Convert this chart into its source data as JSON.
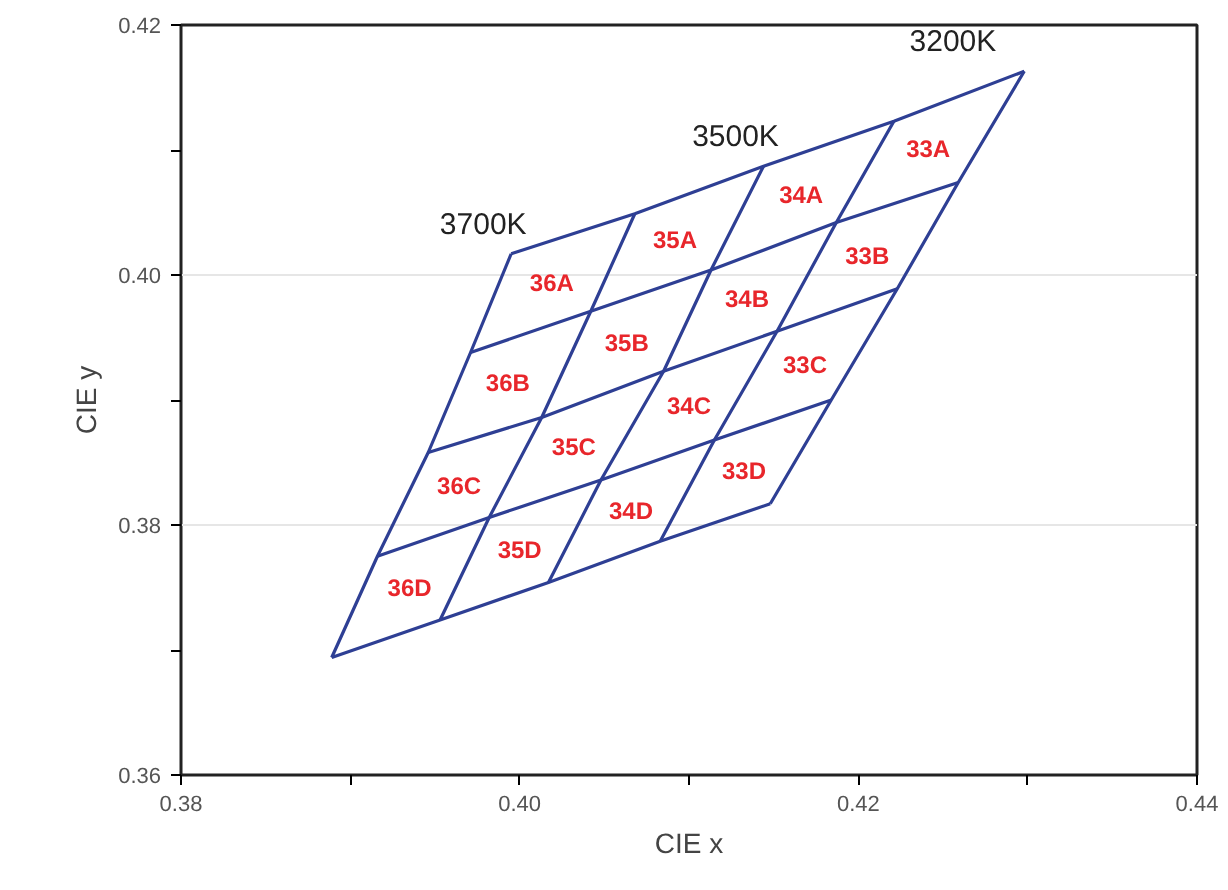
{
  "chart_data": {
    "type": "line",
    "xlabel": "CIE x",
    "ylabel": "CIE y",
    "xlim": [
      0.38,
      0.44
    ],
    "ylim": [
      0.36,
      0.42
    ],
    "xticks": [
      {
        "value": 0.38,
        "label": "0.38"
      },
      {
        "value": 0.39,
        "label": null
      },
      {
        "value": 0.4,
        "label": "0.40"
      },
      {
        "value": 0.41,
        "label": null
      },
      {
        "value": 0.42,
        "label": "0.42"
      },
      {
        "value": 0.43,
        "label": null
      },
      {
        "value": 0.44,
        "label": "0.44"
      }
    ],
    "yticks": [
      {
        "value": 0.36,
        "label": "0.36"
      },
      {
        "value": 0.37,
        "label": null
      },
      {
        "value": 0.38,
        "label": "0.38"
      },
      {
        "value": 0.39,
        "label": null
      },
      {
        "value": 0.4,
        "label": "0.40"
      },
      {
        "value": 0.41,
        "label": null
      },
      {
        "value": 0.42,
        "label": "0.42"
      }
    ],
    "grid": "y",
    "marker": "none",
    "line_style": "solid",
    "series": [
      {
        "color": "#2e3f94",
        "x": [
          0.3995,
          0.4068,
          0.4144,
          0.4221,
          0.4298
        ],
        "values": [
          0.4017,
          0.4049,
          0.4087,
          0.4123,
          0.4163
        ]
      },
      {
        "color": "#2e3f94",
        "x": [
          0.3971,
          0.4042,
          0.4113,
          0.4187,
          0.4259
        ],
        "values": [
          0.3938,
          0.3971,
          0.4004,
          0.4042,
          0.4074
        ]
      },
      {
        "color": "#2e3f94",
        "x": [
          0.3946,
          0.4013,
          0.4085,
          0.4152,
          0.4223
        ],
        "values": [
          0.3858,
          0.3886,
          0.3923,
          0.3955,
          0.3989
        ]
      },
      {
        "color": "#2e3f94",
        "x": [
          0.3916,
          0.3982,
          0.4048,
          0.4115,
          0.4184
        ],
        "values": [
          0.3775,
          0.3806,
          0.3836,
          0.3868,
          0.39
        ]
      },
      {
        "color": "#2e3f94",
        "x": [
          0.3889,
          0.3953,
          0.4017,
          0.4083,
          0.4148
        ],
        "values": [
          0.3694,
          0.3724,
          0.3754,
          0.3787,
          0.3817
        ]
      },
      {
        "name": "3700K",
        "color": "#2e3f94",
        "x": [
          0.3889,
          0.3916,
          0.3946,
          0.3971,
          0.3995
        ],
        "values": [
          0.3694,
          0.3775,
          0.3858,
          0.3938,
          0.4017
        ]
      },
      {
        "color": "#2e3f94",
        "x": [
          0.3953,
          0.3982,
          0.4013,
          0.4042,
          0.4068
        ],
        "values": [
          0.3724,
          0.3806,
          0.3886,
          0.3971,
          0.4049
        ]
      },
      {
        "name": "3500K",
        "color": "#2e3f94",
        "x": [
          0.4017,
          0.4048,
          0.4085,
          0.4113,
          0.4144
        ],
        "values": [
          0.3754,
          0.3836,
          0.3923,
          0.4004,
          0.4087
        ]
      },
      {
        "color": "#2e3f94",
        "x": [
          0.4083,
          0.4115,
          0.4152,
          0.4187,
          0.4221
        ],
        "values": [
          0.3787,
          0.3868,
          0.3955,
          0.4042,
          0.4123
        ]
      },
      {
        "name": "3200K",
        "color": "#2e3f94",
        "x": [
          0.4148,
          0.4184,
          0.4223,
          0.4259,
          0.4298
        ],
        "values": [
          0.3817,
          0.39,
          0.3989,
          0.4074,
          0.4163
        ]
      }
    ],
    "annotations": [
      "36A",
      "35A",
      "34A",
      "33A",
      "36B",
      "35B",
      "34B",
      "33B",
      "36C",
      "35C",
      "34C",
      "33C",
      "36D",
      "35D",
      "34D",
      "33D"
    ]
  }
}
